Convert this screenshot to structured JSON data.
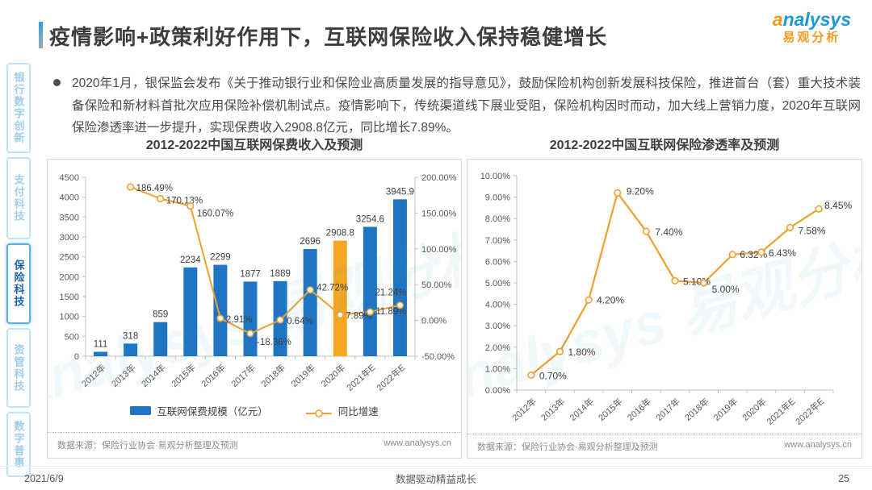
{
  "page": {
    "title": "疫情影响+政策利好作用下，互联网保险收入保持稳健增长",
    "logo": {
      "latin_prefix": "a",
      "latin_rest": "nalysys",
      "cn": "易观分析"
    },
    "bullet_text": "2020年1月，银保监会发布《关于推动银行业和保险业高质量发展的指导意见》，鼓励保险机构创新发展科技保险，推进首台（套）重大技术装备保险和新材料首批次应用保险补偿机制试点。疫情影响下，传统渠道线下展业受阻，保险机构因时而动，加大线上营销力度，2020年互联网保险渗透率进一步提升，实现保费收入2908.8亿元，同比增长7.89%。",
    "watermark": "analysys 易观分析",
    "footer": {
      "date": "2021/6/9",
      "slogan": "数据驱动精益成长",
      "page_number": "25"
    }
  },
  "sidebar": {
    "items": [
      {
        "label": "银行数字创新",
        "active": false
      },
      {
        "label": "支付科技",
        "active": false
      },
      {
        "label": "保险科技",
        "active": true
      },
      {
        "label": "资管科技",
        "active": false
      },
      {
        "label": "数字普惠",
        "active": false
      }
    ]
  },
  "colors": {
    "bar_blue": "#1F74C4",
    "highlight_orange": "#F5A623",
    "line_orange": "#F0A12E",
    "axis_line": "#BFBFBF",
    "axis_text": "#595959",
    "data_label": "#404040",
    "brand_blue": "#1B9AD6",
    "brand_orange": "#F59A23"
  },
  "chart_data": [
    {
      "type": "bar",
      "title": "2012-2022中国互联网保费收入及预测",
      "categories": [
        "2012年",
        "2013年",
        "2014年",
        "2015年",
        "2016年",
        "2017年",
        "2018年",
        "2019年",
        "2020年",
        "2021年E",
        "2022年E"
      ],
      "series": [
        {
          "name": "互联网保费规模（亿元）",
          "type": "bar",
          "values": [
            111,
            318,
            859,
            2234,
            2299,
            1877,
            1889,
            2696,
            2908.8,
            3254.6,
            3945.9
          ],
          "labels": [
            "111",
            "318",
            "859",
            "2234",
            "2299",
            "1877",
            "1889",
            "2696",
            "2908.8",
            "3254.6",
            "3945.9"
          ],
          "highlight_index": 8
        },
        {
          "name": "同比增速",
          "type": "line",
          "axis": "right",
          "values": [
            null,
            186.49,
            170.13,
            160.07,
            2.91,
            -18.36,
            0.64,
            42.72,
            7.89,
            11.89,
            21.24
          ],
          "labels": [
            null,
            "186.49%",
            "170.13%",
            "160.07%",
            "2.91%",
            "-18.36%",
            "0.64%",
            "42.72%",
            "7.89%",
            "11.89%",
            "21.24%"
          ]
        }
      ],
      "left_axis": {
        "min": 0,
        "max": 4500,
        "step": 500,
        "format": "number"
      },
      "right_axis": {
        "min": -50,
        "max": 200,
        "step": 50,
        "format": "percent"
      },
      "grid": false,
      "legend_position": "bottom",
      "source": "数据来源：保险行业协会·易观分析整理及预测",
      "source_site": "www.analysys.cn"
    },
    {
      "type": "line",
      "title": "2012-2022中国互联网保险渗透率及预测",
      "categories": [
        "2012年",
        "2013年",
        "2014年",
        "2015年",
        "2016年",
        "2017年",
        "2018年",
        "2019年",
        "2020年",
        "2021年E",
        "2022年E"
      ],
      "series": [
        {
          "name": "互联网保险渗透率",
          "type": "line",
          "values": [
            0.7,
            1.8,
            4.2,
            9.2,
            7.4,
            5.1,
            5.0,
            6.32,
            6.43,
            7.58,
            8.45
          ],
          "labels": [
            "0.70%",
            "1.80%",
            "4.20%",
            "9.20%",
            "7.40%",
            "5.10%",
            "5.00%",
            "6.32%",
            "6.43%",
            "7.58%",
            "8.45%"
          ]
        }
      ],
      "y_axis": {
        "min": 0,
        "max": 10,
        "step": 1,
        "format": "percent2"
      },
      "grid": false,
      "source": "数据来源：保险行业协会·易观分析整理及预测",
      "source_site": "www.analysys.cn"
    }
  ]
}
